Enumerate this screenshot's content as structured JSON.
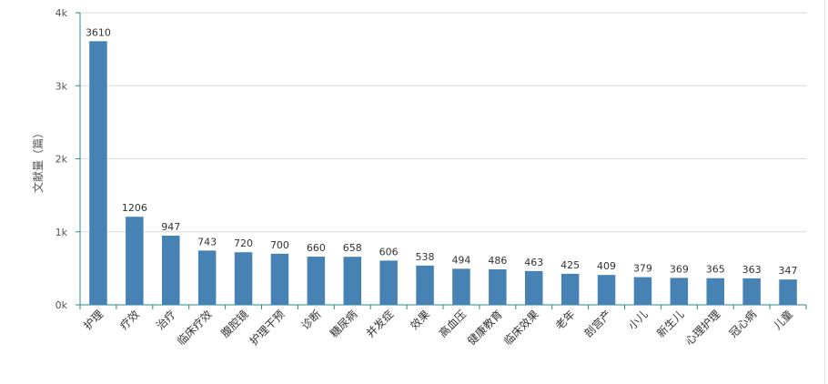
{
  "chart_data": {
    "type": "bar",
    "ylabel": "文献量（篇）",
    "ylim": [
      0,
      4000
    ],
    "yticks": [
      {
        "value": 0,
        "label": "0k"
      },
      {
        "value": 1000,
        "label": "1k"
      },
      {
        "value": 2000,
        "label": "2k"
      },
      {
        "value": 3000,
        "label": "3k"
      },
      {
        "value": 4000,
        "label": "4k"
      }
    ],
    "grid": true,
    "bar_color": "#4682b4",
    "categories": [
      "护理",
      "疗效",
      "治疗",
      "临床疗效",
      "腹腔镜",
      "护理干预",
      "诊断",
      "糖尿病",
      "并发症",
      "效果",
      "高血压",
      "健康教育",
      "临床效果",
      "老年",
      "剖宫产",
      "小儿",
      "新生儿",
      "心理护理",
      "冠心病",
      "儿童"
    ],
    "values": [
      3610,
      1206,
      947,
      743,
      720,
      700,
      660,
      658,
      606,
      538,
      494,
      486,
      463,
      425,
      409,
      379,
      369,
      365,
      363,
      347
    ]
  }
}
